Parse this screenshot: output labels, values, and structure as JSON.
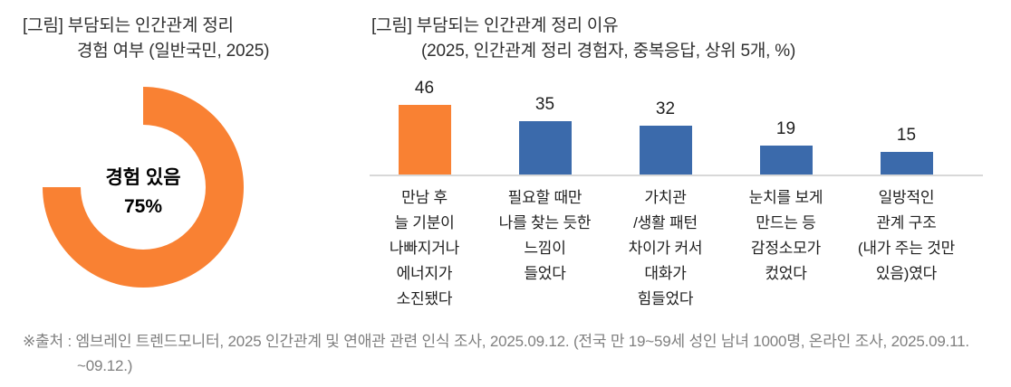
{
  "left_chart": {
    "title_line1": "[그림] 부담되는 인간관계 정리",
    "title_line2": "경험 여부 (일반국민, 2025)"
  },
  "right_chart": {
    "title_line1": "[그림] 부담되는 인간관계 정리 이유",
    "title_line2": "(2025, 인간관계 정리 경험자, 중복응답, 상위 5개, %)"
  },
  "footer": {
    "line1": "※출처 : 엠브레인 트렌드모니터, 2025 인간관계 및 연애관 관련 인식 조사, 2025.09.12. (전국 만 19~59세 성인 남녀 1000명, 온라인 조사, 2025.09.11.",
    "line2": "~09.12.)"
  },
  "colors": {
    "orange": "#F98133",
    "blue": "#3B6AAB",
    "axis_line": "#D8D8D8",
    "title_text": "#2F2F2F",
    "footer_text": "#7F7F7F"
  },
  "chart_data": [
    {
      "type": "pie",
      "variant": "donut",
      "title": "[그림] 부담되는 인간관계 정리 경험 여부 (일반국민, 2025)",
      "slices": [
        {
          "label": "경험 있음",
          "value": 75,
          "color": "#F98133"
        }
      ],
      "total": 100,
      "remainder_value": 25,
      "remainder_rendered": "blank",
      "start_angle": "top",
      "direction": "clockwise",
      "center_label_line1": "경험 있음",
      "center_label_line2": "75%"
    },
    {
      "type": "bar",
      "title": "[그림] 부담되는 인간관계 정리 이유 (2025, 인간관계 정리 경험자, 중복응답, 상위 5개, %)",
      "unit": "%",
      "categories": [
        [
          "만남 후",
          "늘 기분이",
          "나빠지거나",
          "에너지가",
          "소진됐다"
        ],
        [
          "필요할 때만",
          "나를 찾는 듯한",
          "느낌이",
          "들었다"
        ],
        [
          "가치관",
          "/생활 패턴",
          "차이가 커서",
          "대화가",
          "힘들었다"
        ],
        [
          "눈치를 보게",
          "만드는 등",
          "감정소모가",
          "컸었다"
        ],
        [
          "일방적인",
          "관계 구조",
          "(내가 주는 것만",
          "있음)였다"
        ]
      ],
      "values": [
        46,
        35,
        32,
        19,
        15
      ],
      "colors": [
        "#F98133",
        "#3B6AAB",
        "#3B6AAB",
        "#3B6AAB",
        "#3B6AAB"
      ],
      "ylim": [
        0,
        50
      ],
      "value_labels": true,
      "legend": false,
      "gridlines": false
    }
  ]
}
